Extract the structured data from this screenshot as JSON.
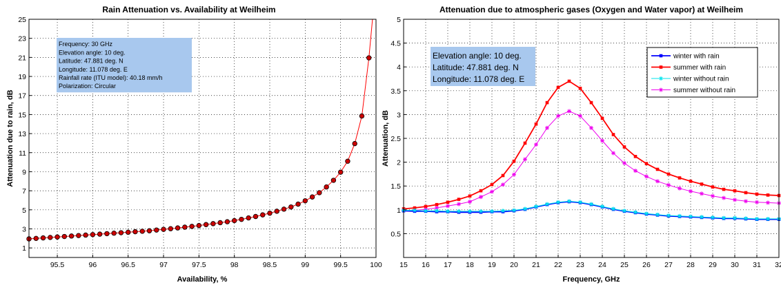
{
  "chart_data": [
    {
      "type": "line",
      "title": "Rain Attenuation vs. Availability at Weilheim",
      "xlabel": "Availability, %",
      "ylabel": "Attenuation due to rain, dB",
      "xlim": [
        95.1,
        100
      ],
      "ylim": [
        0,
        25
      ],
      "xticks": [
        95.5,
        96,
        96.5,
        97,
        97.5,
        98,
        98.5,
        99,
        99.5,
        100
      ],
      "yticks": [
        1,
        3,
        5,
        7,
        9,
        11,
        13,
        15,
        17,
        19,
        21,
        23,
        25
      ],
      "grid": true,
      "line_color": "#ff0000",
      "marker_color": "#cc0000",
      "annotation": [
        "Frequency: 30 GHz",
        "Elevation angle: 10 deg.",
        "Latitude: 47.881 deg. N",
        "Longitude: 11.078 deg. E",
        "Rainfall rate (ITU model): 40.18 mm/h",
        "Polarization: Circular"
      ],
      "annotation_bg": "#a8c8ee",
      "series": [
        {
          "x": [
            95.1,
            95.2,
            95.3,
            95.4,
            95.5,
            95.6,
            95.7,
            95.8,
            95.9,
            96.0,
            96.1,
            96.2,
            96.3,
            96.4,
            96.5,
            96.6,
            96.7,
            96.8,
            96.9,
            97.0,
            97.1,
            97.2,
            97.3,
            97.4,
            97.5,
            97.6,
            97.7,
            97.8,
            97.9,
            98.0,
            98.1,
            98.2,
            98.3,
            98.4,
            98.5,
            98.6,
            98.7,
            98.8,
            98.9,
            99.0,
            99.1,
            99.2,
            99.3,
            99.4,
            99.5,
            99.6,
            99.7,
            99.8,
            99.9
          ],
          "y": [
            1.95,
            2.0,
            2.05,
            2.1,
            2.15,
            2.2,
            2.25,
            2.3,
            2.35,
            2.4,
            2.45,
            2.5,
            2.55,
            2.6,
            2.65,
            2.7,
            2.75,
            2.8,
            2.88,
            2.95,
            3.02,
            3.1,
            3.18,
            3.26,
            3.35,
            3.45,
            3.55,
            3.65,
            3.75,
            3.87,
            4.0,
            4.15,
            4.3,
            4.47,
            4.65,
            4.85,
            5.07,
            5.3,
            5.6,
            5.95,
            6.35,
            6.8,
            7.4,
            8.1,
            8.95,
            10.1,
            11.95,
            14.85,
            20.95
          ]
        }
      ]
    },
    {
      "type": "line",
      "title": "Attenuation due to atmospheric gases (Oxygen and Water vapor) at Weilheim",
      "xlabel": "Frequency, GHz",
      "ylabel": "Attenuation, dB",
      "xlim": [
        15,
        32
      ],
      "ylim": [
        0,
        5
      ],
      "xticks": [
        15,
        16,
        17,
        18,
        19,
        20,
        21,
        22,
        23,
        24,
        25,
        26,
        27,
        28,
        29,
        30,
        31,
        32
      ],
      "yticks": [
        0.5,
        1,
        1.5,
        2,
        2.5,
        3,
        3.5,
        4,
        4.5,
        5
      ],
      "grid": true,
      "legend_position": "top-right",
      "annotation": [
        "Elevation angle: 10 deg.",
        "Latitude: 47.881 deg. N",
        "Longitude: 11.078 deg. E"
      ],
      "annotation_bg": "#a8c8ee",
      "x": [
        15,
        15.5,
        16,
        16.5,
        17,
        17.5,
        18,
        18.5,
        19,
        19.5,
        20,
        20.5,
        21,
        21.5,
        22,
        22.5,
        23,
        23.5,
        24,
        24.5,
        25,
        25.5,
        26,
        26.5,
        27,
        27.5,
        28,
        28.5,
        29,
        29.5,
        30,
        30.5,
        31,
        31.5,
        32
      ],
      "series": [
        {
          "name": "winter with rain",
          "color": "#0000ff",
          "marker": "square",
          "values": [
            0.98,
            0.97,
            0.97,
            0.96,
            0.96,
            0.95,
            0.95,
            0.95,
            0.96,
            0.96,
            0.98,
            1.01,
            1.06,
            1.11,
            1.15,
            1.17,
            1.15,
            1.11,
            1.06,
            1.01,
            0.97,
            0.94,
            0.91,
            0.89,
            0.87,
            0.86,
            0.85,
            0.84,
            0.83,
            0.82,
            0.82,
            0.81,
            0.8,
            0.8,
            0.8
          ]
        },
        {
          "name": "summer with rain",
          "color": "#ff0000",
          "marker": "square",
          "values": [
            1.02,
            1.04,
            1.07,
            1.11,
            1.16,
            1.22,
            1.29,
            1.4,
            1.53,
            1.72,
            2.02,
            2.4,
            2.8,
            3.25,
            3.57,
            3.7,
            3.55,
            3.25,
            2.92,
            2.58,
            2.32,
            2.12,
            1.97,
            1.85,
            1.75,
            1.67,
            1.6,
            1.54,
            1.48,
            1.43,
            1.4,
            1.36,
            1.33,
            1.31,
            1.3
          ]
        },
        {
          "name": "winter without rain",
          "color": "#00e5ee",
          "marker": "asterisk",
          "values": [
            0.99,
            0.99,
            0.98,
            0.98,
            0.97,
            0.97,
            0.97,
            0.97,
            0.97,
            0.98,
            0.99,
            1.02,
            1.07,
            1.12,
            1.16,
            1.18,
            1.16,
            1.12,
            1.07,
            1.02,
            0.98,
            0.95,
            0.92,
            0.9,
            0.88,
            0.87,
            0.86,
            0.85,
            0.84,
            0.83,
            0.83,
            0.82,
            0.81,
            0.81,
            0.81
          ]
        },
        {
          "name": "summer without rain",
          "color": "#ee00ee",
          "marker": "asterisk",
          "values": [
            0.98,
            0.99,
            1.01,
            1.04,
            1.08,
            1.12,
            1.17,
            1.27,
            1.38,
            1.53,
            1.74,
            2.06,
            2.37,
            2.72,
            2.97,
            3.07,
            2.97,
            2.72,
            2.45,
            2.19,
            1.98,
            1.82,
            1.7,
            1.6,
            1.52,
            1.45,
            1.39,
            1.34,
            1.29,
            1.25,
            1.21,
            1.18,
            1.16,
            1.15,
            1.14
          ]
        }
      ]
    }
  ]
}
